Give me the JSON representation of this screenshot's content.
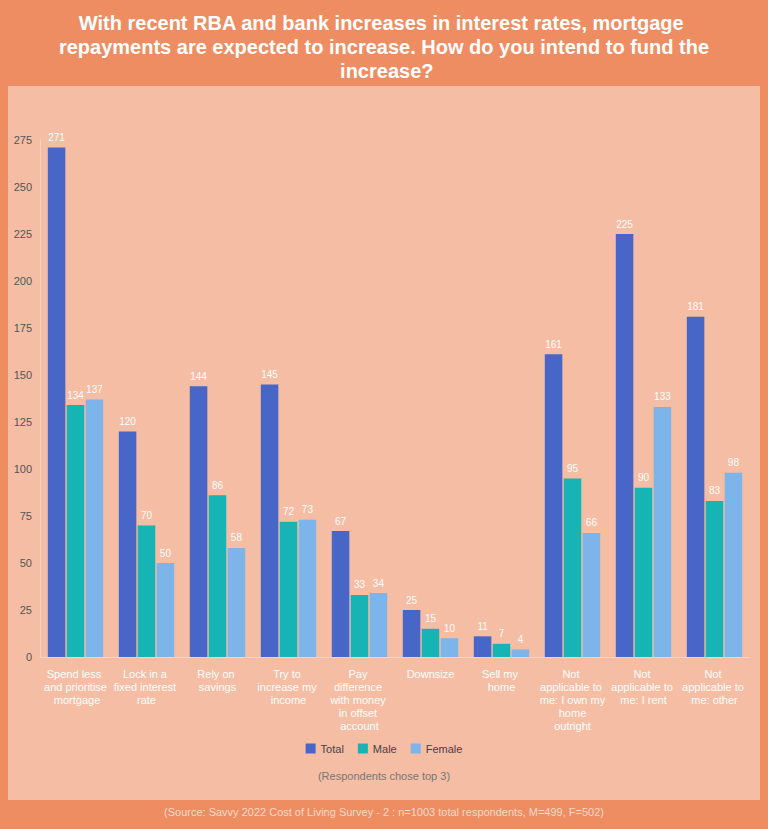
{
  "chart_data": {
    "type": "bar",
    "title": "With recent RBA and bank increases in interest rates, mortgage repayments are expected to increase. How do you intend to fund the increase?",
    "categories": [
      "Spend less and prioritise mortgage",
      "Lock in a fixed interest rate",
      "Rely on savings",
      "Try to increase my income",
      "Pay difference with money in offset account",
      "Downsize",
      "Sell my home",
      "Not applicable to me: I own my home outright",
      "Not applicable to me: I rent",
      "Not applicable to me: other"
    ],
    "series": [
      {
        "name": "Total",
        "color": "#4766C8",
        "values": [
          271,
          120,
          144,
          145,
          67,
          25,
          11,
          161,
          225,
          181
        ]
      },
      {
        "name": "Male",
        "color": "#16B4B4",
        "values": [
          134,
          70,
          86,
          72,
          33,
          15,
          7,
          95,
          90,
          83
        ]
      },
      {
        "name": "Female",
        "color": "#7DB4EA",
        "values": [
          137,
          50,
          58,
          73,
          34,
          10,
          4,
          66,
          133,
          98
        ]
      }
    ],
    "ylim": [
      0,
      275
    ],
    "yticks": [
      0,
      25,
      50,
      75,
      100,
      125,
      150,
      175,
      200,
      225,
      250,
      275
    ],
    "grid": false,
    "data_labels": true,
    "legend": "bottom",
    "annotations": [
      "(Respondents chose top 3)",
      "(Source: Savvy 2022 Cost of Living Survey - 2 : n=1003 total respondents, M=499, F=502)"
    ]
  }
}
